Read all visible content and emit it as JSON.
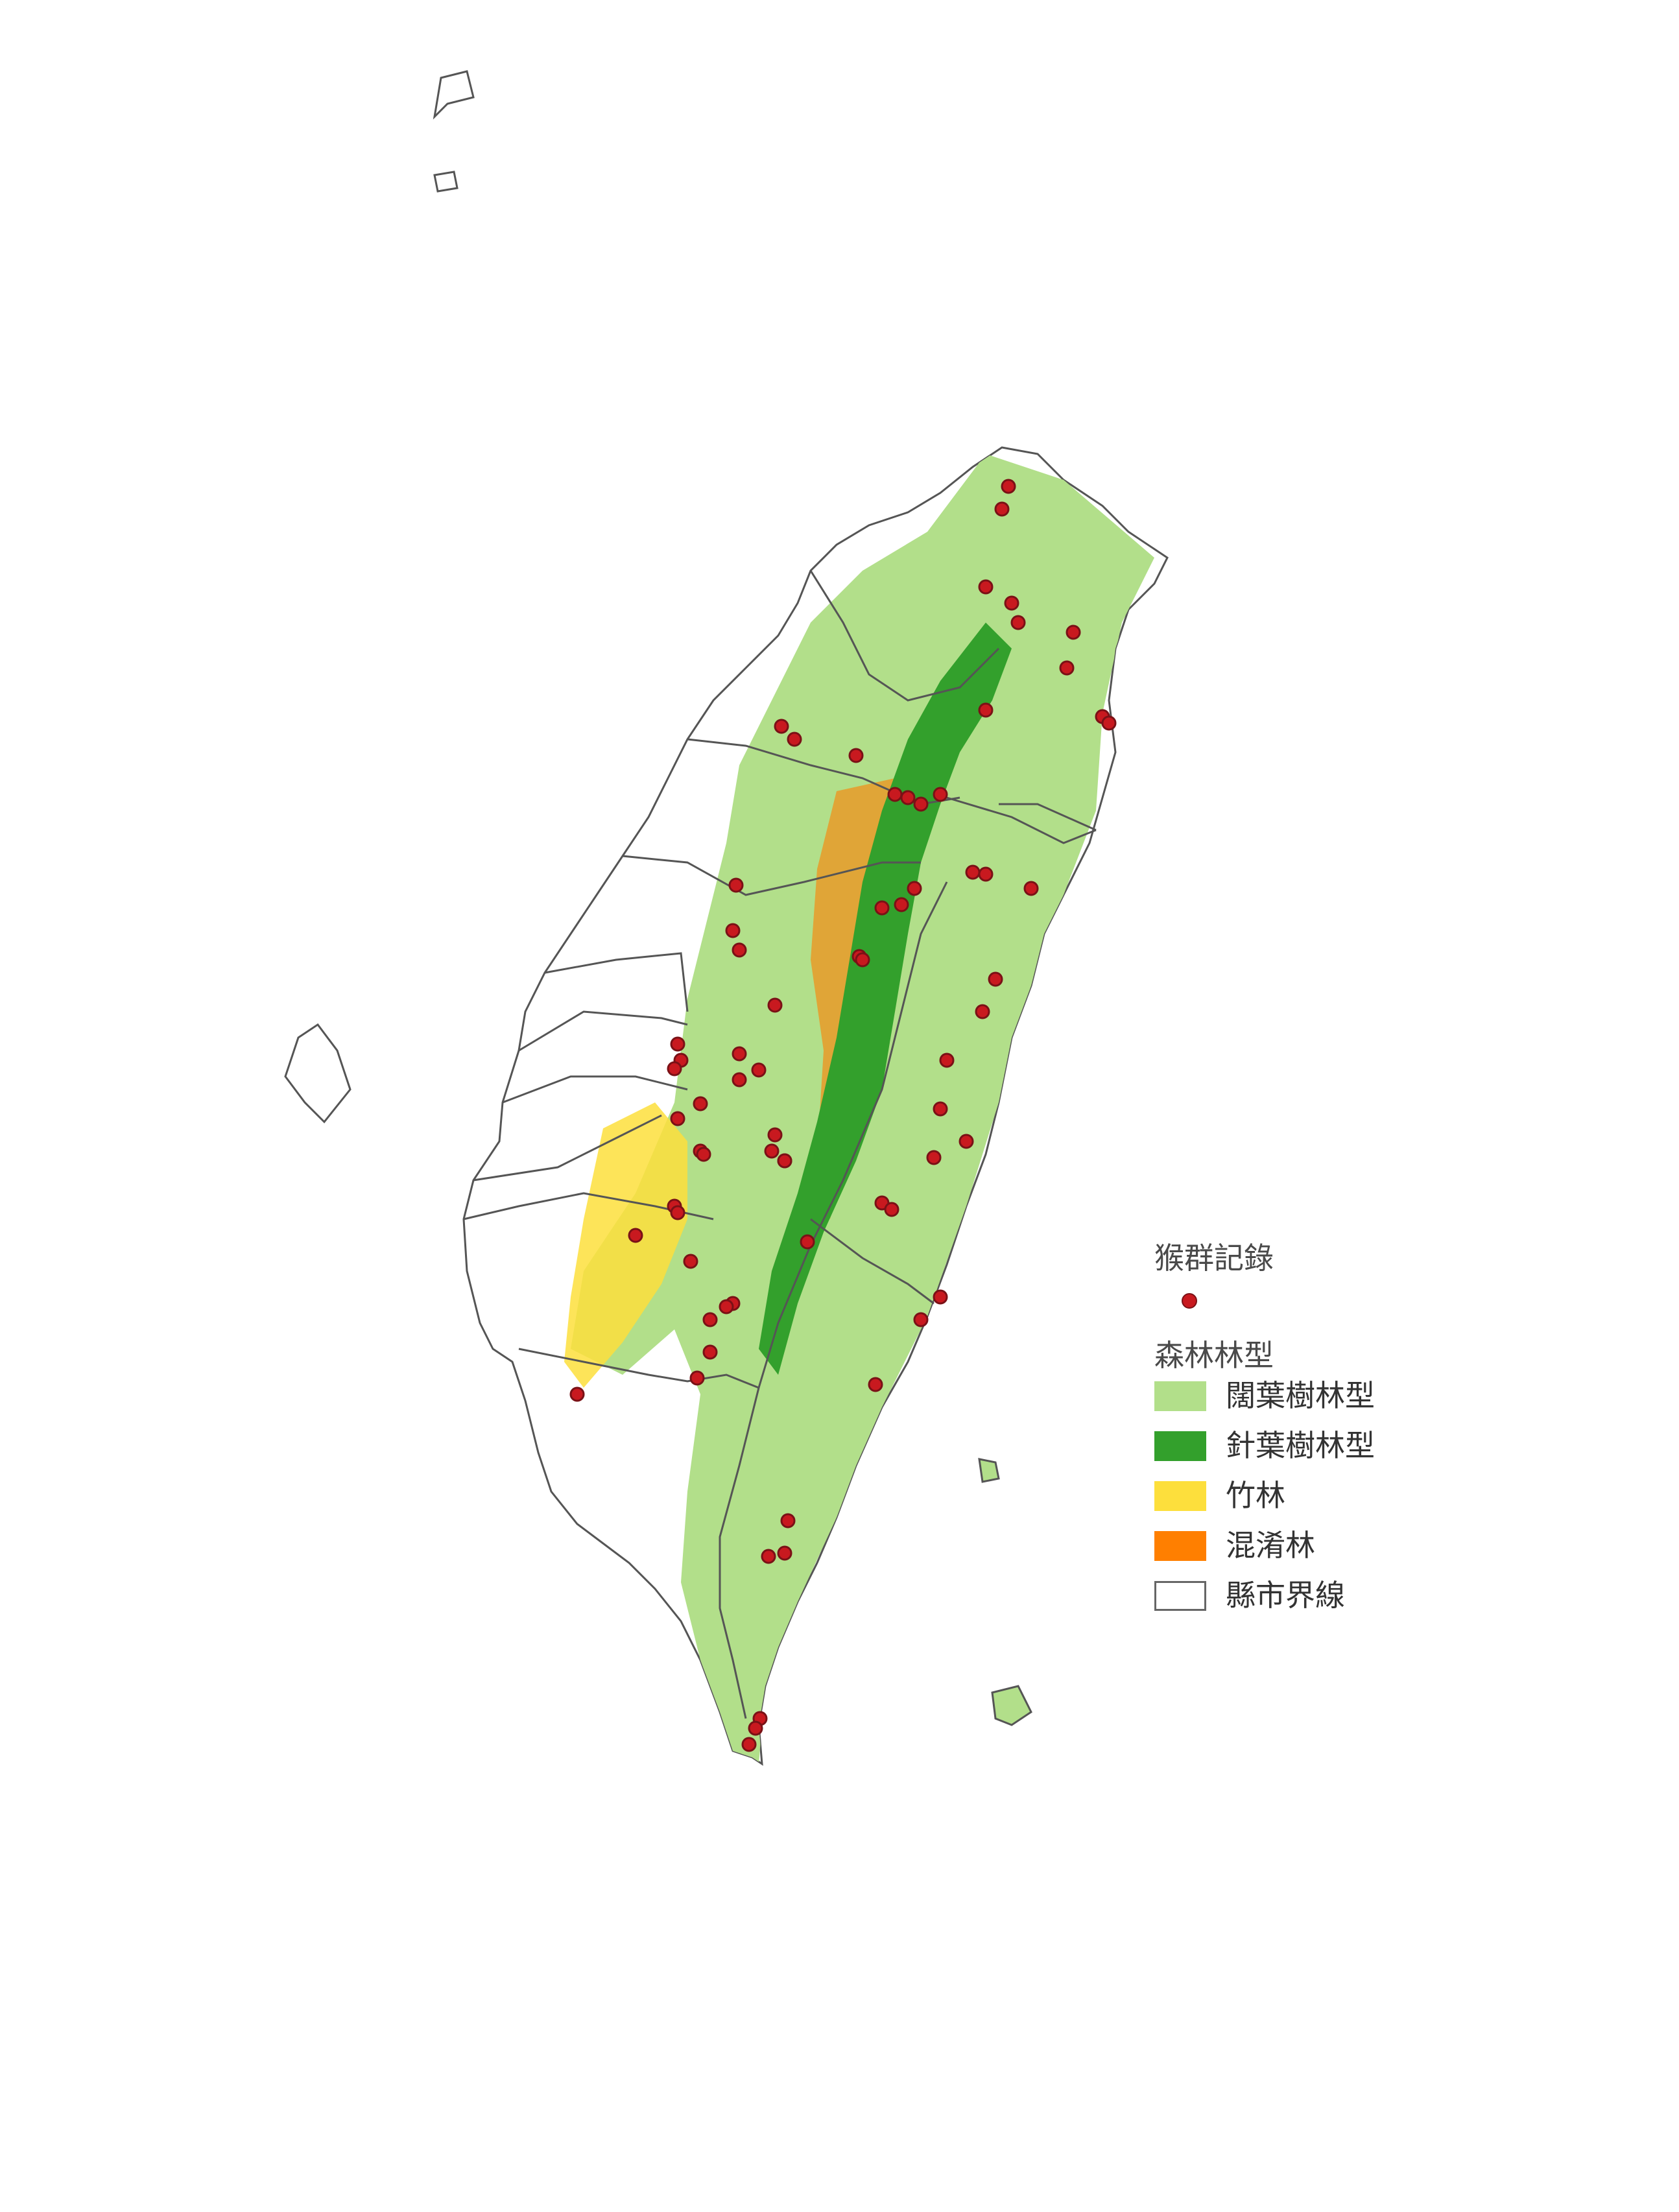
{
  "legend": {
    "points_heading": "猴群記錄",
    "forest_heading": "森林林型",
    "items": [
      {
        "label": "闊葉樹林型",
        "color": "#b2df8a",
        "border": "#b2df8a"
      },
      {
        "label": "針葉樹林型",
        "color": "#33a02c",
        "border": "#33a02c"
      },
      {
        "label": "竹林",
        "color": "#fddf3c",
        "border": "#fddf3c"
      },
      {
        "label": "混淆林",
        "color": "#ff7f00",
        "border": "#ff7f00"
      },
      {
        "label": "縣市界線",
        "color": "#ffffff",
        "border": "#666666"
      }
    ]
  },
  "colors": {
    "point_fill": "#c8191f",
    "point_stroke": "#7a1116",
    "boundary": "#555555",
    "land": "#ffffff",
    "broadleaf": "#b2df8a",
    "conifer": "#33a02c",
    "bamboo": "#fddf3c",
    "mixed": "#ff7f00"
  }
}
